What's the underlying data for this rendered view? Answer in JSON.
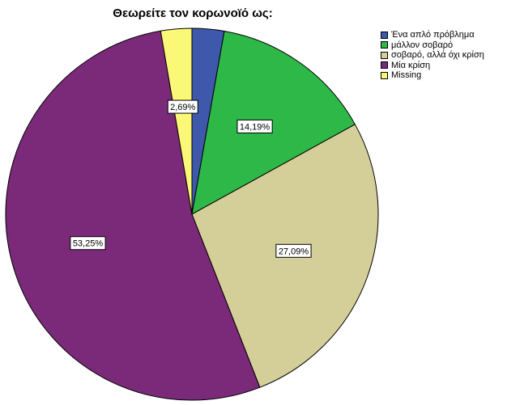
{
  "chart_data": {
    "type": "pie",
    "title": "Θεωρείτε τον κορωνοϊό ως:",
    "categories": [
      "Ένα απλό πρόβλημα",
      "μάλλον σοβαρό",
      "σοβαρό, αλλά όχι κρίση",
      "Μία κρίση",
      "Missing"
    ],
    "values": [
      2.78,
      14.19,
      27.09,
      53.25,
      2.69
    ],
    "data_labels": [
      "",
      "14,19%",
      "27,09%",
      "53,25%",
      "2,69%"
    ],
    "colors": [
      "#3e58ac",
      "#2eb848",
      "#d4cf98",
      "#7b2a7a",
      "#fbf878"
    ],
    "legend_position": "top-right",
    "start_angle": "12 o'clock",
    "direction": "clockwise"
  }
}
